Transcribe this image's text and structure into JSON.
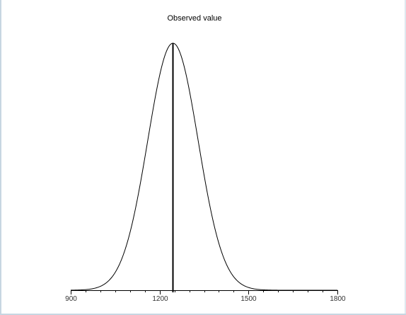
{
  "chart_data": {
    "type": "line",
    "title": "Observed value",
    "xlabel": "",
    "ylabel": "",
    "xlim": [
      900,
      1800
    ],
    "xticks_major": [
      900,
      1200,
      1500,
      1800
    ],
    "xtick_minor_step": 50,
    "grid": false,
    "legend": "none",
    "series": [
      {
        "kind": "normal-density-curve",
        "mean": 1245,
        "sd": 85,
        "color": "#000000"
      }
    ],
    "observed_value": 1245,
    "observed_line_color": "#000000"
  }
}
